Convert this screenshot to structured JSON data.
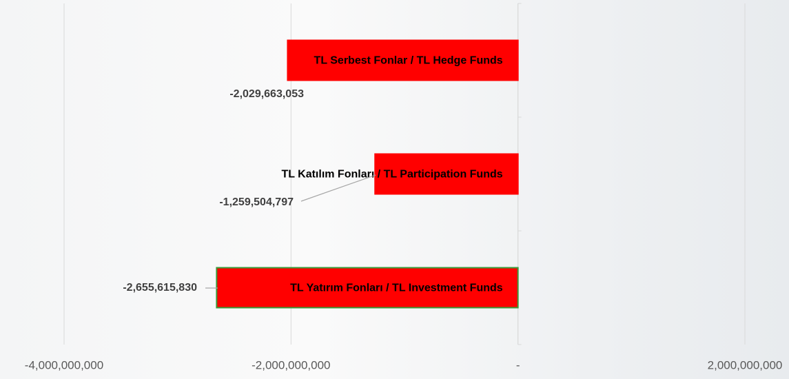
{
  "chart_data": {
    "type": "barh",
    "categories": [
      "TL Serbest Fonlar / TL Hedge Funds",
      "TL Katılım Fonları / TL Participation Funds",
      "TL Yatırım Fonları / TL Investment Funds"
    ],
    "values": [
      -2029663053,
      -1259504797,
      -2655615830
    ],
    "value_labels": [
      "-2,029,663,053",
      "-1,259,504,797",
      "-2,655,615,830"
    ],
    "color": "#ff0000",
    "edgecolors": [
      "#ff0000",
      "#ff0000",
      "#3a9a3a"
    ],
    "xlim": [
      -4000000000,
      2000000000
    ],
    "xticks": [
      {
        "value": -4000000000,
        "label": "-4,000,000,000"
      },
      {
        "value": -2000000000,
        "label": "-2,000,000,000"
      },
      {
        "value": 0,
        "label": "-"
      },
      {
        "value": 2000000000,
        "label": "2,000,000,000"
      }
    ],
    "grid": true
  }
}
